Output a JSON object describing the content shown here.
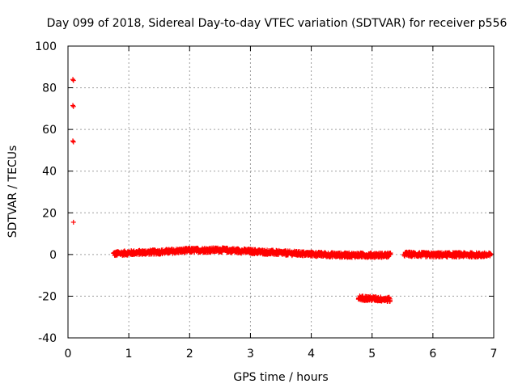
{
  "chart_data": {
    "type": "scatter",
    "title": "Day 099 of 2018, Sidereal Day-to-day VTEC variation (SDTVAR) for receiver p556",
    "xlabel": "GPS time / hours",
    "ylabel": "SDTVAR / TECUs",
    "xlim": [
      0,
      7
    ],
    "ylim": [
      -40,
      100
    ],
    "x_ticks": [
      0,
      1,
      2,
      3,
      4,
      5,
      6,
      7
    ],
    "y_ticks": [
      -40,
      -20,
      0,
      20,
      40,
      60,
      80,
      100
    ],
    "grid": true,
    "marker": "plus",
    "color": "#ff0000",
    "series": [
      {
        "name": "SDTVAR",
        "segments": [
          {
            "x_start": 0.75,
            "x_end": 5.3,
            "y": [
              [
                0.75,
                0.3
              ],
              [
                1.0,
                0.8
              ],
              [
                1.5,
                1.2
              ],
              [
                2.0,
                2.0
              ],
              [
                2.5,
                2.2
              ],
              [
                3.0,
                1.5
              ],
              [
                3.5,
                0.8
              ],
              [
                4.0,
                0.2
              ],
              [
                4.5,
                -0.3
              ],
              [
                5.0,
                -0.3
              ],
              [
                5.3,
                -0.3
              ]
            ]
          },
          {
            "x_start": 5.53,
            "x_end": 6.95,
            "y": [
              [
                5.53,
                0.2
              ],
              [
                6.0,
                -0.2
              ],
              [
                6.5,
                -0.1
              ],
              [
                6.95,
                -0.3
              ]
            ]
          },
          {
            "x_start": 4.78,
            "x_end": 5.3,
            "y": [
              [
                4.78,
                -20.8
              ],
              [
                5.0,
                -21.2
              ],
              [
                5.3,
                -21.6
              ]
            ]
          }
        ],
        "points": [
          [
            0.08,
            84
          ],
          [
            0.09,
            83.5
          ],
          [
            0.08,
            71.5
          ],
          [
            0.09,
            71
          ],
          [
            0.08,
            54.5
          ],
          [
            0.09,
            54
          ],
          [
            0.09,
            15.5
          ]
        ]
      }
    ]
  }
}
